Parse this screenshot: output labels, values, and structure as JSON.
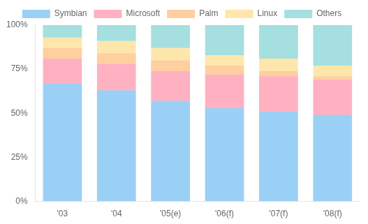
{
  "chart_data": {
    "type": "bar",
    "stacked": true,
    "categories": [
      "'03",
      "'04",
      "'05(e)",
      "'06(f)",
      "'07(f)",
      "'08(f)"
    ],
    "series": [
      {
        "name": "Symbian",
        "values": [
          0.67,
          0.63,
          0.57,
          0.53,
          0.51,
          0.49
        ]
      },
      {
        "name": "Microsoft",
        "values": [
          0.14,
          0.15,
          0.17,
          0.19,
          0.2,
          0.2
        ]
      },
      {
        "name": "Palm",
        "values": [
          0.06,
          0.06,
          0.06,
          0.05,
          0.03,
          0.02
        ]
      },
      {
        "name": "Linux",
        "values": [
          0.06,
          0.07,
          0.07,
          0.06,
          0.07,
          0.06
        ]
      },
      {
        "name": "Others",
        "values": [
          0.07,
          0.09,
          0.13,
          0.17,
          0.19,
          0.23
        ]
      }
    ],
    "ylim": [
      0,
      1.0
    ],
    "yticks": [
      {
        "value": 0,
        "label": "0%"
      },
      {
        "value": 0.25,
        "label": "25%"
      },
      {
        "value": 0.5,
        "label": "50%"
      },
      {
        "value": 0.75,
        "label": "75%"
      },
      {
        "value": 1.0,
        "label": "100%"
      }
    ],
    "grid": false,
    "legend": "top"
  }
}
